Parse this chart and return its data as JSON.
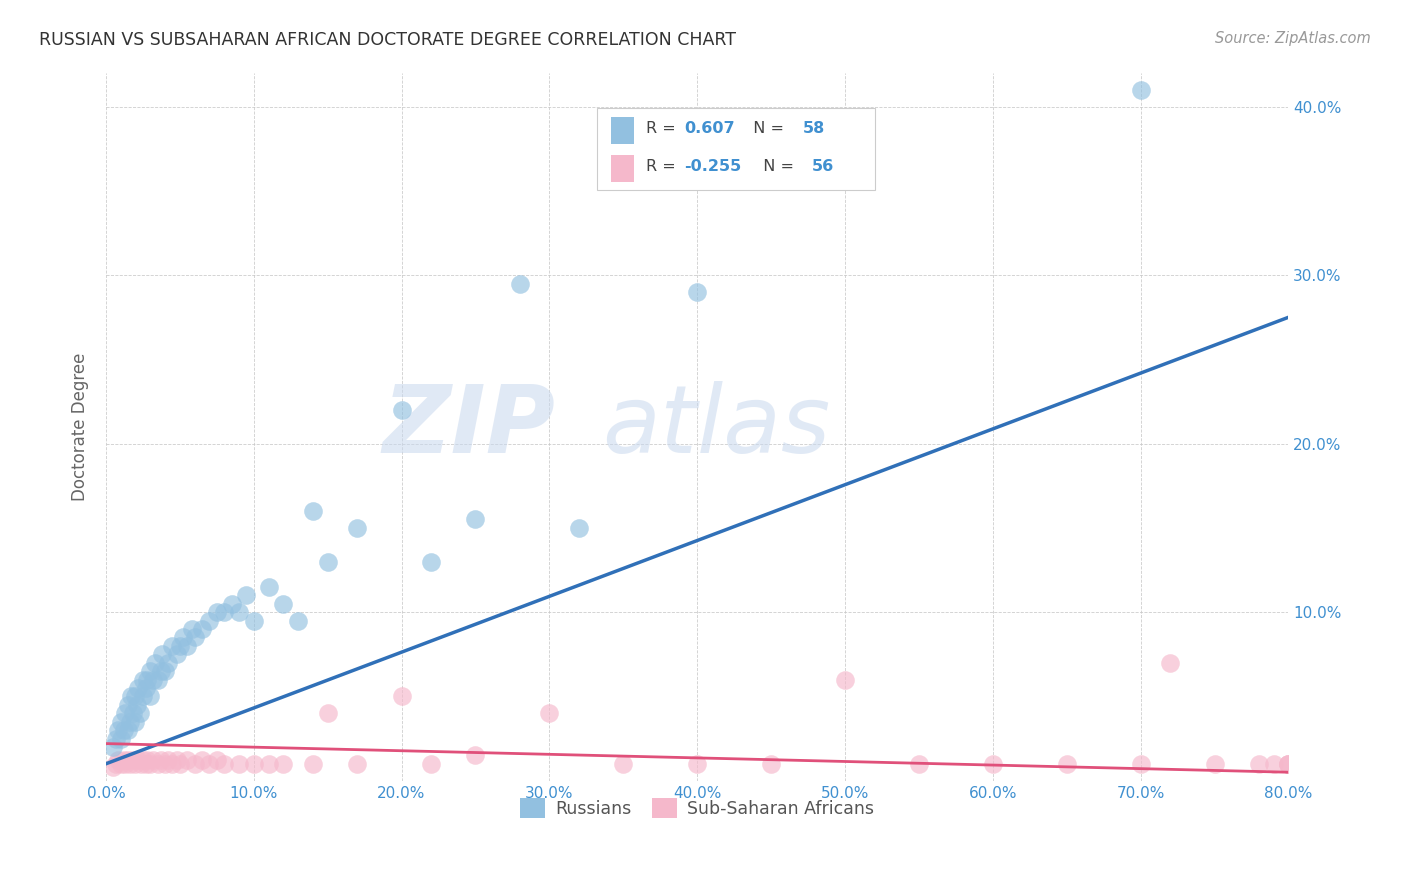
{
  "title": "RUSSIAN VS SUBSAHARAN AFRICAN DOCTORATE DEGREE CORRELATION CHART",
  "source": "Source: ZipAtlas.com",
  "ylabel": "Doctorate Degree",
  "xlim": [
    0.0,
    0.8
  ],
  "ylim": [
    0.0,
    0.42
  ],
  "watermark_zip": "ZIP",
  "watermark_atlas": "atlas",
  "legend_label1": "Russians",
  "legend_label2": "Sub-Saharan Africans",
  "r1": "0.607",
  "n1": "58",
  "r2": "-0.255",
  "n2": "56",
  "blue_color": "#92c0e0",
  "pink_color": "#f5b8cb",
  "blue_line_color": "#3070b8",
  "pink_line_color": "#e0507a",
  "title_color": "#333333",
  "source_color": "#999999",
  "tick_color": "#4090d0",
  "scatter_blue_x": [
    0.005,
    0.007,
    0.008,
    0.01,
    0.01,
    0.012,
    0.013,
    0.015,
    0.015,
    0.016,
    0.017,
    0.018,
    0.02,
    0.02,
    0.021,
    0.022,
    0.023,
    0.025,
    0.025,
    0.027,
    0.028,
    0.03,
    0.03,
    0.032,
    0.033,
    0.035,
    0.037,
    0.038,
    0.04,
    0.042,
    0.045,
    0.048,
    0.05,
    0.052,
    0.055,
    0.058,
    0.06,
    0.065,
    0.07,
    0.075,
    0.08,
    0.085,
    0.09,
    0.095,
    0.1,
    0.11,
    0.12,
    0.13,
    0.14,
    0.15,
    0.17,
    0.2,
    0.22,
    0.25,
    0.28,
    0.32,
    0.4,
    0.7
  ],
  "scatter_blue_y": [
    0.02,
    0.025,
    0.03,
    0.025,
    0.035,
    0.03,
    0.04,
    0.03,
    0.045,
    0.035,
    0.05,
    0.04,
    0.035,
    0.05,
    0.045,
    0.055,
    0.04,
    0.05,
    0.06,
    0.055,
    0.06,
    0.05,
    0.065,
    0.06,
    0.07,
    0.06,
    0.065,
    0.075,
    0.065,
    0.07,
    0.08,
    0.075,
    0.08,
    0.085,
    0.08,
    0.09,
    0.085,
    0.09,
    0.095,
    0.1,
    0.1,
    0.105,
    0.1,
    0.11,
    0.095,
    0.115,
    0.105,
    0.095,
    0.16,
    0.13,
    0.15,
    0.22,
    0.13,
    0.155,
    0.295,
    0.15,
    0.29,
    0.41
  ],
  "scatter_pink_x": [
    0.005,
    0.007,
    0.008,
    0.01,
    0.012,
    0.013,
    0.015,
    0.016,
    0.018,
    0.02,
    0.022,
    0.024,
    0.025,
    0.027,
    0.028,
    0.03,
    0.032,
    0.035,
    0.037,
    0.04,
    0.042,
    0.045,
    0.048,
    0.05,
    0.055,
    0.06,
    0.065,
    0.07,
    0.075,
    0.08,
    0.09,
    0.1,
    0.11,
    0.12,
    0.14,
    0.15,
    0.17,
    0.2,
    0.22,
    0.25,
    0.3,
    0.35,
    0.4,
    0.45,
    0.5,
    0.55,
    0.6,
    0.65,
    0.7,
    0.72,
    0.75,
    0.78,
    0.79,
    0.8,
    0.8,
    0.8
  ],
  "scatter_pink_y": [
    0.008,
    0.01,
    0.012,
    0.01,
    0.012,
    0.01,
    0.012,
    0.01,
    0.012,
    0.01,
    0.012,
    0.01,
    0.012,
    0.01,
    0.012,
    0.01,
    0.012,
    0.01,
    0.012,
    0.01,
    0.012,
    0.01,
    0.012,
    0.01,
    0.012,
    0.01,
    0.012,
    0.01,
    0.012,
    0.01,
    0.01,
    0.01,
    0.01,
    0.01,
    0.01,
    0.04,
    0.01,
    0.05,
    0.01,
    0.015,
    0.04,
    0.01,
    0.01,
    0.01,
    0.06,
    0.01,
    0.01,
    0.01,
    0.01,
    0.07,
    0.01,
    0.01,
    0.01,
    0.01,
    0.01,
    0.01
  ],
  "blue_trend_x": [
    0.0,
    0.8
  ],
  "blue_trend_y": [
    0.01,
    0.275
  ],
  "pink_trend_x": [
    0.0,
    0.8
  ],
  "pink_trend_y": [
    0.022,
    0.005
  ]
}
